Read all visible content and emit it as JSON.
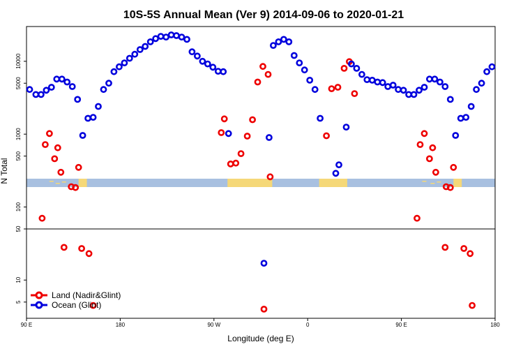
{
  "chart_data": {
    "type": "scatter",
    "title": "10S-5S Annual Mean (Ver 9)   2014-09-06 to 2020-01-21",
    "xlabel": "Longitude (deg E)",
    "ylabel": "N Total",
    "xlim": [
      90,
      540
    ],
    "x_ticks": [
      {
        "value": 90,
        "label": "90 E"
      },
      {
        "value": 180,
        "label": "180"
      },
      {
        "value": 270,
        "label": "90 W"
      },
      {
        "value": 360,
        "label": "0"
      },
      {
        "value": 450,
        "label": "90 E"
      },
      {
        "value": 540,
        "label": "180"
      }
    ],
    "upper_panel": {
      "scale": "log",
      "ylim": [
        50,
        30000
      ],
      "y_ticks": [
        {
          "value": 50,
          "label": "50"
        },
        {
          "value": 100,
          "label": "100"
        },
        {
          "value": 500,
          "label": "500"
        },
        {
          "value": 1000,
          "label": "1000"
        },
        {
          "value": 5000,
          "label": "5000"
        },
        {
          "value": 10000,
          "label": "10000"
        }
      ]
    },
    "lower_panel": {
      "scale": "log",
      "ylim": [
        3,
        50
      ],
      "y_ticks": [
        {
          "value": 5,
          "label": "5"
        },
        {
          "value": 10,
          "label": "10"
        },
        {
          "value": 50,
          "label": "50"
        }
      ]
    },
    "series": [
      {
        "name": "Land (Nadir&Glint)",
        "color": "#ee0000",
        "points": [
          [
            105,
            70
          ],
          [
            108,
            720
          ],
          [
            112,
            1020
          ],
          [
            117,
            460
          ],
          [
            120,
            650
          ],
          [
            123,
            300
          ],
          [
            133,
            190
          ],
          [
            137,
            185
          ],
          [
            140,
            350
          ],
          [
            277,
            1050
          ],
          [
            280,
            1620
          ],
          [
            286,
            390
          ],
          [
            291,
            400
          ],
          [
            296,
            540
          ],
          [
            302,
            940
          ],
          [
            307,
            1580
          ],
          [
            312,
            5200
          ],
          [
            317,
            8500
          ],
          [
            322,
            6600
          ],
          [
            324,
            260
          ],
          [
            378,
            950
          ],
          [
            383,
            4200
          ],
          [
            389,
            4400
          ],
          [
            395,
            8000
          ],
          [
            400,
            9900
          ],
          [
            405,
            3600
          ],
          [
            465,
            70
          ],
          [
            468,
            720
          ],
          [
            472,
            1020
          ],
          [
            477,
            460
          ],
          [
            480,
            650
          ],
          [
            483,
            300
          ],
          [
            493,
            190
          ],
          [
            497,
            185
          ],
          [
            500,
            350
          ],
          [
            126,
            28
          ],
          [
            143,
            27
          ],
          [
            150,
            23
          ],
          [
            154,
            4.5
          ],
          [
            318,
            4
          ],
          [
            492,
            28
          ],
          [
            510,
            27
          ],
          [
            516,
            23
          ],
          [
            518,
            4.5
          ]
        ]
      },
      {
        "name": "Ocean (Glint)",
        "color": "#0000dd",
        "points": [
          [
            93,
            4100
          ],
          [
            99,
            3500
          ],
          [
            104,
            3500
          ],
          [
            109,
            4000
          ],
          [
            114,
            4400
          ],
          [
            119,
            5700
          ],
          [
            124,
            5700
          ],
          [
            129,
            5200
          ],
          [
            134,
            4500
          ],
          [
            139,
            3000
          ],
          [
            144,
            960
          ],
          [
            149,
            1650
          ],
          [
            154,
            1700
          ],
          [
            159,
            2400
          ],
          [
            164,
            4100
          ],
          [
            169,
            5000
          ],
          [
            174,
            7200
          ],
          [
            179,
            8400
          ],
          [
            184,
            9500
          ],
          [
            189,
            11000
          ],
          [
            194,
            12500
          ],
          [
            199,
            14500
          ],
          [
            204,
            16000
          ],
          [
            209,
            18500
          ],
          [
            214,
            20500
          ],
          [
            219,
            22000
          ],
          [
            224,
            21500
          ],
          [
            229,
            23000
          ],
          [
            234,
            22500
          ],
          [
            239,
            21500
          ],
          [
            244,
            20000
          ],
          [
            249,
            13500
          ],
          [
            254,
            11800
          ],
          [
            259,
            10000
          ],
          [
            264,
            9200
          ],
          [
            269,
            8300
          ],
          [
            274,
            7300
          ],
          [
            279,
            7200
          ],
          [
            284,
            1020
          ],
          [
            323,
            900
          ],
          [
            327,
            16500
          ],
          [
            332,
            18500
          ],
          [
            337,
            20000
          ],
          [
            342,
            18500
          ],
          [
            347,
            12000
          ],
          [
            352,
            9500
          ],
          [
            357,
            7600
          ],
          [
            362,
            5500
          ],
          [
            367,
            4100
          ],
          [
            372,
            1650
          ],
          [
            387,
            290
          ],
          [
            390,
            380
          ],
          [
            397,
            1250
          ],
          [
            402,
            9200
          ],
          [
            407,
            8000
          ],
          [
            412,
            6600
          ],
          [
            417,
            5600
          ],
          [
            422,
            5500
          ],
          [
            427,
            5200
          ],
          [
            432,
            5100
          ],
          [
            437,
            4500
          ],
          [
            442,
            4700
          ],
          [
            447,
            4100
          ],
          [
            452,
            4000
          ],
          [
            457,
            3500
          ],
          [
            462,
            3500
          ],
          [
            467,
            4000
          ],
          [
            472,
            4400
          ],
          [
            477,
            5700
          ],
          [
            482,
            5700
          ],
          [
            487,
            5200
          ],
          [
            492,
            4500
          ],
          [
            497,
            3000
          ],
          [
            502,
            960
          ],
          [
            507,
            1650
          ],
          [
            512,
            1700
          ],
          [
            517,
            2400
          ],
          [
            522,
            4100
          ],
          [
            527,
            5000
          ],
          [
            532,
            7200
          ],
          [
            537,
            8400
          ],
          [
            318,
            17
          ]
        ]
      }
    ],
    "legend": {
      "placement": "bottom-left"
    },
    "grid": false
  }
}
